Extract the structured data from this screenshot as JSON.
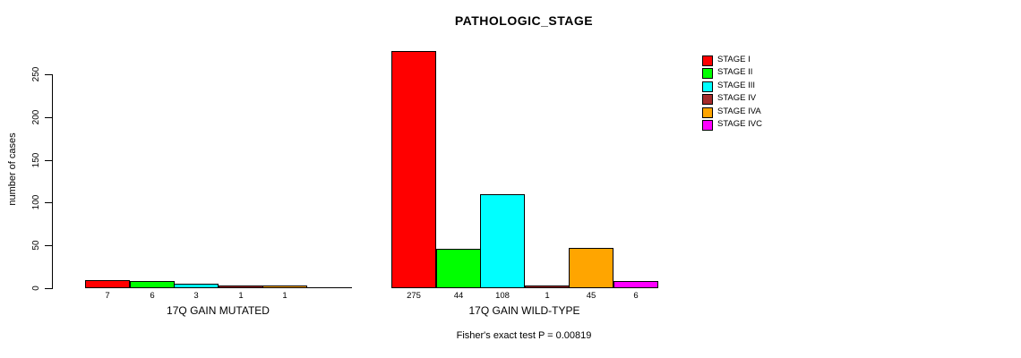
{
  "title": "PATHOLOGIC_STAGE",
  "chart_data": {
    "type": "bar",
    "title": "PATHOLOGIC_STAGE",
    "ylabel": "number of cases",
    "xlabel": "",
    "ylim": [
      0,
      275
    ],
    "yticks": [
      0,
      50,
      100,
      150,
      200,
      250
    ],
    "grid": false,
    "legend_position": "right-outside",
    "legend": [
      {
        "label": "STAGE I",
        "color": "#FF0000"
      },
      {
        "label": "STAGE II",
        "color": "#00FF00"
      },
      {
        "label": "STAGE III",
        "color": "#00FFFF"
      },
      {
        "label": "STAGE IV",
        "color": "#A52A2A"
      },
      {
        "label": "STAGE IVA",
        "color": "#FFA500"
      },
      {
        "label": "STAGE IVC",
        "color": "#FF00FF"
      }
    ],
    "categories": [
      "STAGE I",
      "STAGE II",
      "STAGE III",
      "STAGE IV",
      "STAGE IVA",
      "STAGE IVC"
    ],
    "groups": [
      {
        "label": "17Q GAIN MUTATED",
        "values": [
          7,
          6,
          3,
          1,
          1,
          0
        ],
        "bar_labels": [
          "7",
          "6",
          "3",
          "1",
          "1",
          ""
        ]
      },
      {
        "label": "17Q GAIN WILD-TYPE",
        "values": [
          275,
          44,
          108,
          1,
          45,
          6
        ],
        "bar_labels": [
          "275",
          "44",
          "108",
          "1",
          "45",
          "6"
        ]
      }
    ],
    "annotation": "Fisher's exact test P = 0.00819"
  }
}
